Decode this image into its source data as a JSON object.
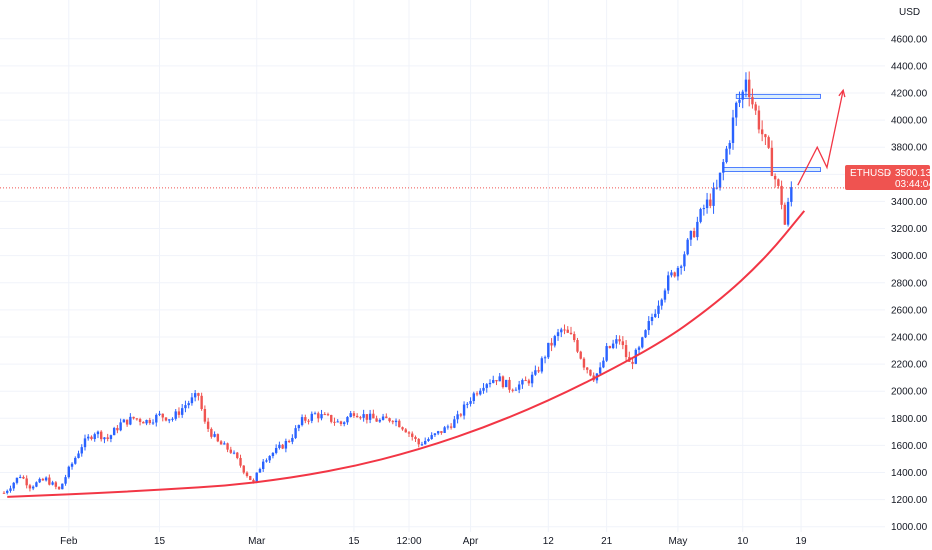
{
  "chart_data": {
    "type": "candlestick",
    "symbol": "ETHUSD",
    "currency": "USD",
    "last_price": "3500.13",
    "countdown": "03:44:04",
    "ylim": [
      900,
      4750
    ],
    "y_ticks": [
      1000,
      1200,
      1400,
      1600,
      1800,
      2000,
      2200,
      2400,
      2600,
      2800,
      3000,
      3200,
      3400,
      3600,
      3800,
      4000,
      4200,
      4400,
      4600
    ],
    "y_tick_labels": [
      "1000.00",
      "1200.00",
      "1400.00",
      "1600.00",
      "1800.00",
      "2000.00",
      "2200.00",
      "2400.00",
      "2600.00",
      "2800.00",
      "3000.00",
      "3200.00",
      "3400.00",
      "3600.00",
      "3800.00",
      "4000.00",
      "4200.00",
      "4400.00",
      "4600.00"
    ],
    "x_tick_labels": [
      {
        "label": "Feb",
        "bar": 20
      },
      {
        "label": "15",
        "bar": 48
      },
      {
        "label": "Mar",
        "bar": 78
      },
      {
        "label": "15",
        "bar": 108
      },
      {
        "label": "12:00",
        "bar": 125
      },
      {
        "label": "Apr",
        "bar": 144
      },
      {
        "label": "12",
        "bar": 168
      },
      {
        "label": "21",
        "bar": 186
      },
      {
        "label": "May",
        "bar": 208
      },
      {
        "label": "10",
        "bar": 228
      },
      {
        "label": "19",
        "bar": 246
      }
    ],
    "price_path": [
      [
        0,
        1250
      ],
      [
        5,
        1380
      ],
      [
        8,
        1300
      ],
      [
        13,
        1350
      ],
      [
        17,
        1270
      ],
      [
        20,
        1420
      ],
      [
        24,
        1600
      ],
      [
        28,
        1700
      ],
      [
        32,
        1650
      ],
      [
        36,
        1760
      ],
      [
        40,
        1800
      ],
      [
        44,
        1780
      ],
      [
        48,
        1820
      ],
      [
        52,
        1800
      ],
      [
        56,
        1900
      ],
      [
        60,
        1970
      ],
      [
        62,
        1760
      ],
      [
        66,
        1620
      ],
      [
        70,
        1560
      ],
      [
        74,
        1420
      ],
      [
        77,
        1320
      ],
      [
        80,
        1500
      ],
      [
        84,
        1560
      ],
      [
        88,
        1640
      ],
      [
        92,
        1780
      ],
      [
        96,
        1830
      ],
      [
        100,
        1800
      ],
      [
        104,
        1760
      ],
      [
        108,
        1850
      ],
      [
        112,
        1810
      ],
      [
        116,
        1780
      ],
      [
        120,
        1800
      ],
      [
        124,
        1720
      ],
      [
        128,
        1610
      ],
      [
        132,
        1660
      ],
      [
        136,
        1720
      ],
      [
        140,
        1800
      ],
      [
        144,
        1950
      ],
      [
        148,
        2060
      ],
      [
        152,
        2100
      ],
      [
        156,
        2030
      ],
      [
        160,
        2050
      ],
      [
        164,
        2120
      ],
      [
        168,
        2320
      ],
      [
        172,
        2450
      ],
      [
        176,
        2380
      ],
      [
        179,
        2200
      ],
      [
        182,
        2110
      ],
      [
        184,
        2150
      ],
      [
        186,
        2300
      ],
      [
        190,
        2380
      ],
      [
        193,
        2200
      ],
      [
        196,
        2300
      ],
      [
        200,
        2550
      ],
      [
        204,
        2780
      ],
      [
        208,
        2920
      ],
      [
        212,
        3130
      ],
      [
        216,
        3350
      ],
      [
        220,
        3480
      ],
      [
        224,
        3880
      ],
      [
        226,
        4100
      ],
      [
        228,
        4200
      ],
      [
        229,
        4330
      ],
      [
        231,
        4130
      ],
      [
        234,
        3900
      ],
      [
        237,
        3650
      ],
      [
        240,
        3400
      ],
      [
        241,
        3230
      ],
      [
        243,
        3500
      ]
    ],
    "curve_points": [
      [
        1,
        1220
      ],
      [
        40,
        1260
      ],
      [
        80,
        1320
      ],
      [
        120,
        1500
      ],
      [
        160,
        1830
      ],
      [
        200,
        2310
      ],
      [
        220,
        2650
      ],
      [
        235,
        2980
      ],
      [
        247,
        3330
      ]
    ],
    "support_zone": {
      "bar_start": 222,
      "bar_end": 252,
      "low": 3620,
      "high": 3650
    },
    "resistance_zone": {
      "bar_start": 226,
      "bar_end": 252,
      "low": 4160,
      "high": 4190
    },
    "projection": [
      [
        245,
        3520
      ],
      [
        251,
        3800
      ],
      [
        254,
        3650
      ],
      [
        259,
        4220
      ]
    ],
    "colors": {
      "up": "#2962ff",
      "down": "#ef5350",
      "curve": "#f23645",
      "zone_fill": "#bbdefb",
      "zone_stroke": "#2962ff",
      "price_tag": "#ef5350",
      "grid": "#f0f3fa"
    }
  }
}
